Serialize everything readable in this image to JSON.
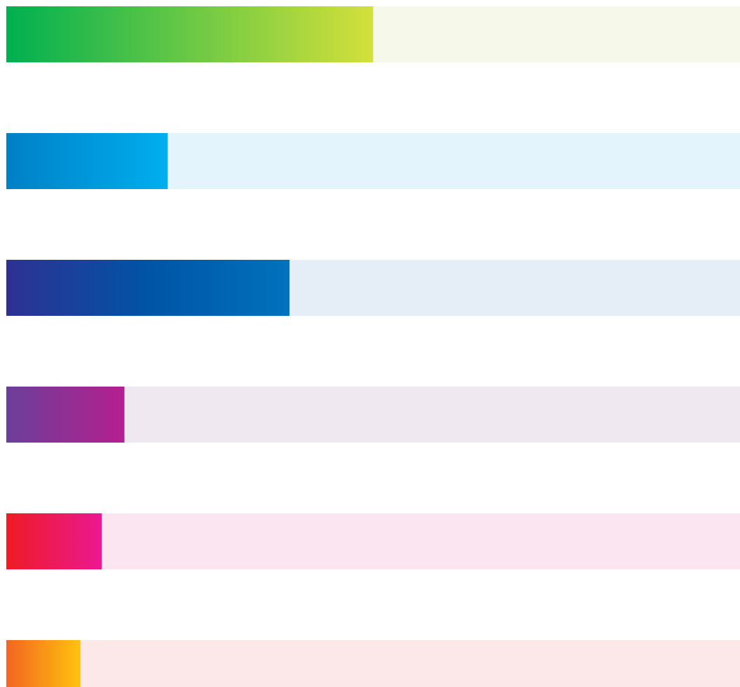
{
  "chart_data": {
    "type": "bar",
    "orientation": "horizontal",
    "title": "",
    "xlabel": "",
    "ylabel": "",
    "xlim": [
      0,
      100
    ],
    "grid": false,
    "legend": "none",
    "categories": [
      "",
      "",
      "",
      "",
      "",
      ""
    ],
    "values": [
      50,
      22,
      38.6,
      16.1,
      13,
      10.1
    ],
    "bars": [
      {
        "track_color": "#f6f9ea",
        "gradient": [
          "#00b050",
          "#d4e03a"
        ]
      },
      {
        "track_color": "#e3f4fc",
        "gradient": [
          "#0080c6",
          "#00aeef"
        ]
      },
      {
        "track_color": "#e5edf6",
        "gradient": [
          "#2e3192",
          "#0054a6",
          "#0072bc"
        ]
      },
      {
        "track_color": "#efe8f1",
        "gradient": [
          "#6b3f99",
          "#b51f8f"
        ]
      },
      {
        "track_color": "#fae5f1",
        "gradient": [
          "#ed1c24",
          "#ec1891"
        ]
      },
      {
        "track_color": "#fce8e9",
        "gradient": [
          "#f26522",
          "#ffc20e"
        ]
      }
    ]
  }
}
